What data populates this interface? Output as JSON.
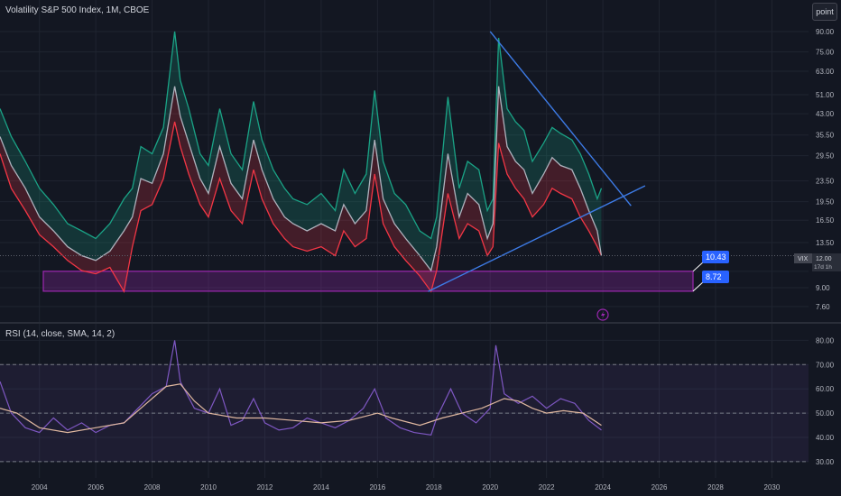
{
  "header": {
    "title": "Volatility S&P 500 Index, 1M, CBOE",
    "mode_button": "point"
  },
  "rsi_header": "RSI (14, close, SMA, 14, 2)",
  "price_tag": {
    "symbol": "VIX",
    "value": "12.00",
    "countdown": "17d 1h"
  },
  "callouts": {
    "upper": "10.43",
    "lower": "8.72"
  },
  "colors": {
    "background": "#131722",
    "up": "#1aa386",
    "down": "#f23645",
    "mid": "#aeb2bd",
    "trendline": "#3d7be6",
    "zone": "#9c27b0",
    "rsi_line": "#7e57c2",
    "rsi_ma": "#e0b8a0"
  },
  "chart_data": [
    {
      "type": "line",
      "title": "Volatility S&P 500 Index, 1M, CBOE",
      "y_scale": "log",
      "y_ticks": [
        7.6,
        9.0,
        10.43,
        13.5,
        16.5,
        19.5,
        23.5,
        29.5,
        35.5,
        43.0,
        51.0,
        63.0,
        75.0,
        90.0
      ],
      "y_tick_labels": [
        "7.60",
        "9.00",
        "",
        "13.50",
        "16.50",
        "19.50",
        "23.50",
        "29.50",
        "35.50",
        "43.00",
        "51.00",
        "63.00",
        "75.00",
        "90.00"
      ],
      "x_ticks": [
        2004,
        2006,
        2008,
        2010,
        2012,
        2014,
        2016,
        2018,
        2020,
        2022,
        2024,
        2026,
        2028,
        2030
      ],
      "x_range": [
        2002.6,
        2031.3
      ],
      "y_range": [
        7.0,
        100.0
      ],
      "series": [
        {
          "role": "high",
          "color": "#1aa386",
          "x": [
            2002.6,
            2003.0,
            2003.5,
            2004.0,
            2004.5,
            2005.0,
            2005.5,
            2006.0,
            2006.5,
            2007.0,
            2007.3,
            2007.6,
            2008.0,
            2008.4,
            2008.8,
            2009.0,
            2009.3,
            2009.7,
            2010.0,
            2010.4,
            2010.8,
            2011.2,
            2011.6,
            2011.9,
            2012.3,
            2012.7,
            2013.0,
            2013.5,
            2014.0,
            2014.5,
            2014.8,
            2015.2,
            2015.6,
            2015.9,
            2016.2,
            2016.6,
            2017.0,
            2017.5,
            2017.9,
            2018.1,
            2018.5,
            2018.9,
            2019.2,
            2019.6,
            2019.9,
            2020.1,
            2020.3,
            2020.6,
            2020.9,
            2021.2,
            2021.5,
            2021.9,
            2022.2,
            2022.5,
            2022.9,
            2023.2,
            2023.5,
            2023.8,
            2023.95
          ],
          "values": [
            45,
            35,
            28,
            22,
            19,
            16,
            15,
            14,
            16,
            20,
            22,
            32,
            30,
            38,
            90,
            58,
            45,
            30,
            27,
            45,
            30,
            26,
            48,
            34,
            26,
            22,
            20,
            19,
            21,
            18,
            26,
            21,
            25,
            53,
            28,
            21,
            19,
            15,
            14,
            17,
            50,
            22,
            28,
            26,
            18,
            20,
            85,
            45,
            40,
            37,
            28,
            33,
            38,
            36,
            34,
            30,
            25,
            20,
            22
          ]
        },
        {
          "role": "close",
          "color": "#aeb2bd",
          "x": [
            2002.6,
            2003.0,
            2003.5,
            2004.0,
            2004.5,
            2005.0,
            2005.5,
            2006.0,
            2006.5,
            2007.0,
            2007.3,
            2007.6,
            2008.0,
            2008.4,
            2008.8,
            2009.0,
            2009.3,
            2009.7,
            2010.0,
            2010.4,
            2010.8,
            2011.2,
            2011.6,
            2011.9,
            2012.3,
            2012.7,
            2013.0,
            2013.5,
            2014.0,
            2014.5,
            2014.8,
            2015.2,
            2015.6,
            2015.9,
            2016.2,
            2016.6,
            2017.0,
            2017.5,
            2017.9,
            2018.1,
            2018.5,
            2018.9,
            2019.2,
            2019.6,
            2019.9,
            2020.1,
            2020.3,
            2020.6,
            2020.9,
            2021.2,
            2021.5,
            2021.9,
            2022.2,
            2022.5,
            2022.9,
            2023.2,
            2023.5,
            2023.8,
            2023.95
          ],
          "values": [
            35,
            27,
            22,
            17,
            15,
            13,
            12,
            11.5,
            12.5,
            15,
            17,
            24,
            23,
            30,
            55,
            42,
            33,
            24,
            21,
            32,
            23,
            20,
            34,
            26,
            20,
            17,
            16,
            15,
            16,
            15,
            19,
            16,
            18,
            34,
            20,
            16,
            14,
            12,
            10.5,
            13,
            30,
            17,
            21,
            19,
            14,
            16,
            55,
            32,
            28,
            26,
            21,
            25,
            29,
            27,
            26,
            22,
            18,
            15,
            12
          ]
        },
        {
          "role": "low",
          "color": "#f23645",
          "x": [
            2002.6,
            2003.0,
            2003.5,
            2004.0,
            2004.5,
            2005.0,
            2005.5,
            2006.0,
            2006.5,
            2007.0,
            2007.3,
            2007.6,
            2008.0,
            2008.4,
            2008.8,
            2009.0,
            2009.3,
            2009.7,
            2010.0,
            2010.4,
            2010.8,
            2011.2,
            2011.6,
            2011.9,
            2012.3,
            2012.7,
            2013.0,
            2013.5,
            2014.0,
            2014.5,
            2014.8,
            2015.2,
            2015.6,
            2015.9,
            2016.2,
            2016.6,
            2017.0,
            2017.5,
            2017.9,
            2018.1,
            2018.5,
            2018.9,
            2019.2,
            2019.6,
            2019.9,
            2020.1,
            2020.3,
            2020.6,
            2020.9,
            2021.2,
            2021.5,
            2021.9,
            2022.2,
            2022.5,
            2022.9,
            2023.2,
            2023.5,
            2023.8,
            2023.95
          ],
          "values": [
            30,
            22,
            18,
            14.5,
            13,
            11.5,
            10.5,
            10.2,
            10.8,
            8.7,
            13,
            18,
            19,
            24,
            40,
            32,
            25,
            19,
            17,
            24,
            18,
            16,
            26,
            20,
            16,
            14,
            13,
            12.5,
            13,
            12,
            15,
            13,
            14,
            25,
            16,
            13,
            11.5,
            10,
            8.7,
            10.5,
            21,
            14,
            16,
            15,
            12,
            13,
            33,
            25,
            22,
            20,
            17,
            19,
            22,
            21,
            20,
            17,
            15,
            13,
            12
          ]
        }
      ],
      "trendlines": [
        {
          "from": [
            2020.0,
            90.0
          ],
          "to": [
            2025.0,
            18.8
          ]
        },
        {
          "from": [
            2017.8,
            8.7
          ],
          "to": [
            2025.5,
            22.5
          ]
        }
      ],
      "zone": {
        "x0": 2002.6,
        "x1": 2027.2,
        "y_top": 10.43,
        "y_bottom": 8.72
      }
    },
    {
      "type": "line",
      "title": "RSI (14, close, SMA, 14, 2)",
      "y_range": [
        27,
        82
      ],
      "y_ticks": [
        30,
        40,
        50,
        60,
        70,
        80
      ],
      "y_tick_labels": [
        "30.00",
        "40.00",
        "50.00",
        "60.00",
        "70.00",
        "80.00"
      ],
      "bands": {
        "upper": 70,
        "middle": 50,
        "lower": 30
      },
      "series": [
        {
          "role": "rsi",
          "color": "#7e57c2",
          "x": [
            2002.6,
            2003.0,
            2003.5,
            2004.0,
            2004.5,
            2005.0,
            2005.5,
            2006.0,
            2006.5,
            2007.0,
            2007.5,
            2008.0,
            2008.5,
            2008.8,
            2009.0,
            2009.5,
            2010.0,
            2010.4,
            2010.8,
            2011.2,
            2011.6,
            2012.0,
            2012.5,
            2013.0,
            2013.5,
            2014.0,
            2014.5,
            2015.0,
            2015.5,
            2015.9,
            2016.3,
            2016.8,
            2017.3,
            2017.9,
            2018.1,
            2018.6,
            2019.0,
            2019.5,
            2020.0,
            2020.2,
            2020.5,
            2021.0,
            2021.5,
            2022.0,
            2022.5,
            2023.0,
            2023.5,
            2023.95
          ],
          "values": [
            63,
            50,
            44,
            42,
            48,
            43,
            46,
            42,
            45,
            46,
            52,
            58,
            61,
            80,
            63,
            52,
            50,
            60,
            45,
            47,
            56,
            46,
            43,
            44,
            48,
            46,
            44,
            47,
            52,
            60,
            48,
            44,
            42,
            41,
            48,
            60,
            50,
            46,
            52,
            78,
            58,
            54,
            57,
            52,
            56,
            54,
            47,
            43
          ]
        },
        {
          "role": "rsi_sma",
          "color": "#e0b8a0",
          "x": [
            2002.6,
            2003.2,
            2004.0,
            2005.0,
            2006.0,
            2007.0,
            2007.8,
            2008.5,
            2009.0,
            2009.5,
            2010.0,
            2011.0,
            2012.0,
            2013.0,
            2014.0,
            2015.0,
            2016.0,
            2016.5,
            2017.5,
            2018.3,
            2019.0,
            2019.7,
            2020.5,
            2021.0,
            2021.5,
            2022.0,
            2022.6,
            2023.3,
            2023.95
          ],
          "values": [
            52,
            50,
            44,
            42,
            44,
            46,
            54,
            61,
            62,
            55,
            50,
            48,
            48,
            47,
            46,
            47,
            50,
            48,
            45,
            48,
            50,
            52,
            56,
            55,
            52,
            50,
            51,
            50,
            45
          ]
        }
      ]
    }
  ]
}
